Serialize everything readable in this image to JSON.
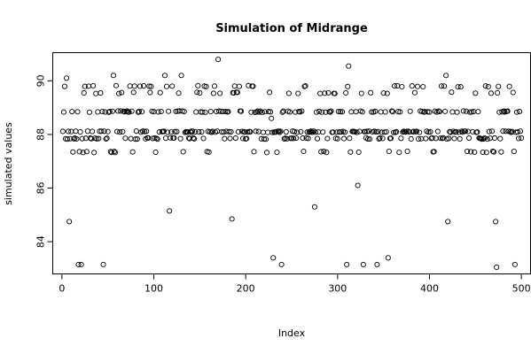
{
  "chart_data": {
    "type": "scatter",
    "title": "Simulation of Midrange",
    "xlabel": "Index",
    "ylabel": "simulated values",
    "xlim": [
      -10,
      510
    ],
    "ylim": [
      82.8,
      91.05
    ],
    "xticks": [
      0,
      100,
      200,
      300,
      400,
      500
    ],
    "yticks": [
      84,
      86,
      88,
      90
    ],
    "grid": false,
    "legend": "none",
    "marker": "open-circle",
    "level_values": [
      88.1,
      88.85,
      87.85,
      88.1,
      89.55,
      88.85,
      88.1,
      87.35,
      89.8,
      88.85,
      88.1,
      87.85
    ],
    "outliers": [
      {
        "x": 5,
        "y": 90.1
      },
      {
        "x": 8,
        "y": 84.75
      },
      {
        "x": 18,
        "y": 83.15
      },
      {
        "x": 21,
        "y": 83.15
      },
      {
        "x": 45,
        "y": 83.15
      },
      {
        "x": 56,
        "y": 90.2
      },
      {
        "x": 112,
        "y": 90.2
      },
      {
        "x": 117,
        "y": 85.15
      },
      {
        "x": 130,
        "y": 90.2
      },
      {
        "x": 170,
        "y": 90.8
      },
      {
        "x": 185,
        "y": 84.85
      },
      {
        "x": 228,
        "y": 88.6
      },
      {
        "x": 230,
        "y": 83.4
      },
      {
        "x": 239,
        "y": 83.15
      },
      {
        "x": 275,
        "y": 85.3
      },
      {
        "x": 310,
        "y": 83.15
      },
      {
        "x": 312,
        "y": 90.55
      },
      {
        "x": 322,
        "y": 86.1
      },
      {
        "x": 328,
        "y": 83.15
      },
      {
        "x": 343,
        "y": 83.15
      },
      {
        "x": 355,
        "y": 83.4
      },
      {
        "x": 418,
        "y": 90.2
      },
      {
        "x": 420,
        "y": 84.75
      },
      {
        "x": 472,
        "y": 84.75
      },
      {
        "x": 473,
        "y": 83.05
      },
      {
        "x": 493,
        "y": 83.15
      }
    ]
  }
}
